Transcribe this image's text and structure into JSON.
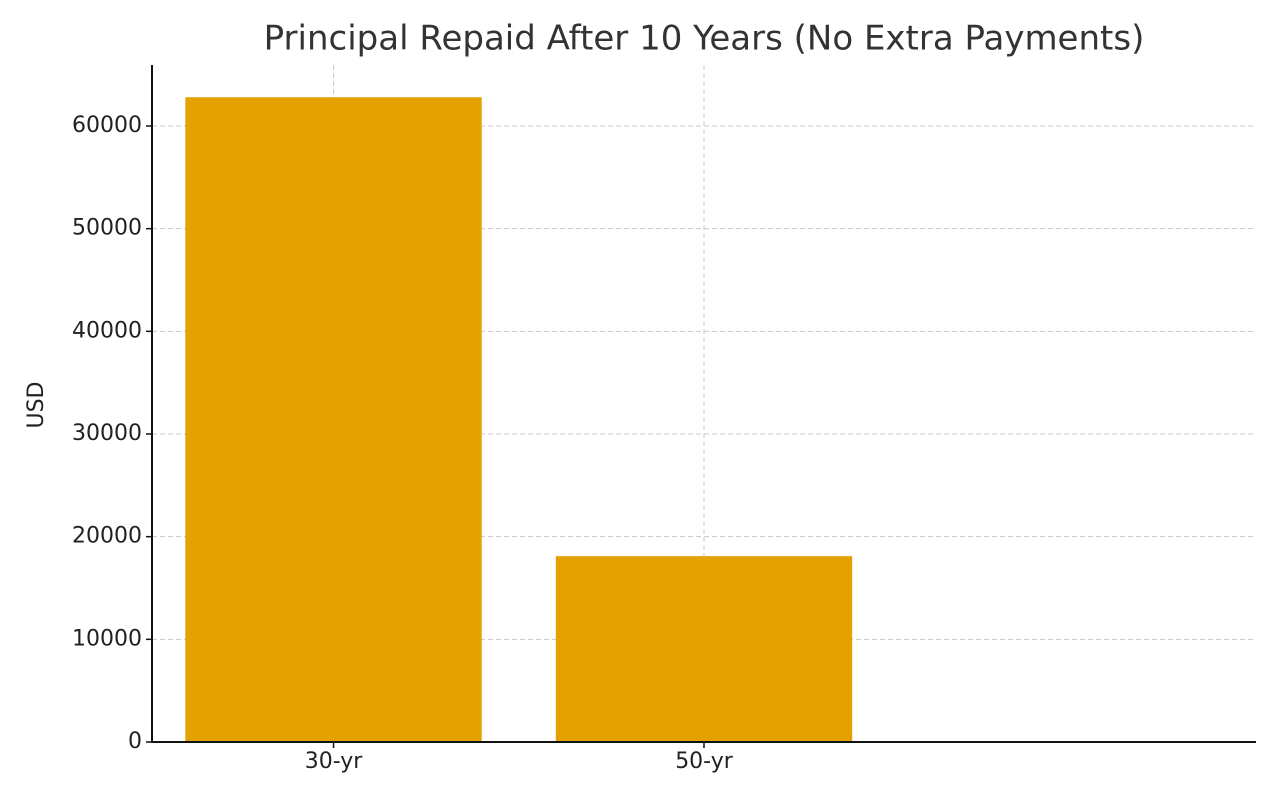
{
  "chart_data": {
    "type": "bar",
    "title": "Principal Repaid After 10 Years (No Extra Payments)",
    "y_label": "USD",
    "categories": [
      "30-yr",
      "50-yr"
    ],
    "values": [
      62800,
      18100
    ],
    "color": "#e3a102",
    "ylim": [
      0,
      65940
    ],
    "yticks": [
      0,
      10000,
      20000,
      30000,
      40000,
      50000,
      60000
    ],
    "grid": true
  }
}
